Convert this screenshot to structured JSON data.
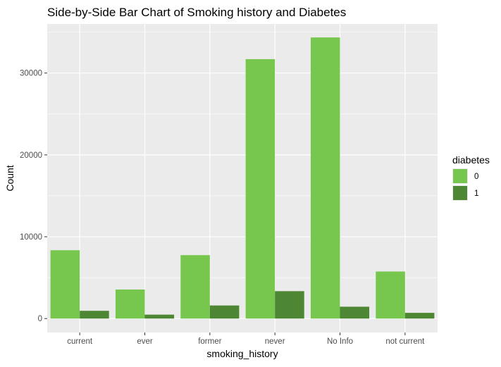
{
  "chart_data": {
    "type": "bar",
    "title": "Side-by-Side Bar Chart of Smoking history and Diabetes",
    "xlabel": "smoking_history",
    "ylabel": "Count",
    "categories": [
      "current",
      "ever",
      "former",
      "never",
      "No Info",
      "not current"
    ],
    "series": [
      {
        "name": "0",
        "color": "#77c74f",
        "values": [
          8350,
          3550,
          7750,
          31700,
          34350,
          5750
        ]
      },
      {
        "name": "1",
        "color": "#4e8734",
        "values": [
          950,
          480,
          1600,
          3350,
          1450,
          700
        ]
      }
    ],
    "ylim": [
      -1700,
      36000
    ],
    "yticks": [
      0,
      10000,
      20000,
      30000
    ],
    "grid": true,
    "background": "#ebebeb",
    "legend": {
      "title": "diabetes",
      "position": "right",
      "entries": [
        "0",
        "1"
      ]
    }
  }
}
